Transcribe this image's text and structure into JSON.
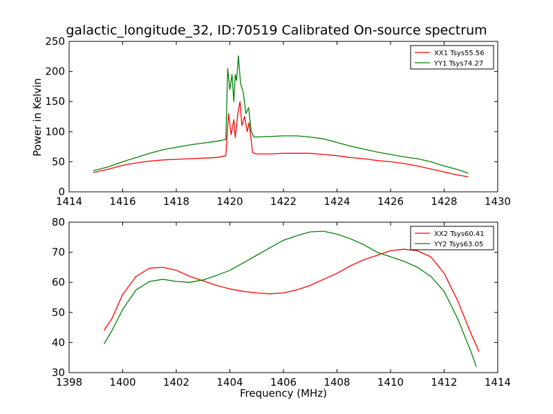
{
  "figure": {
    "title": "galactic_longitude_32, ID:70519 Calibrated On-source spectrum",
    "xlabel": "Frequency (MHz)"
  },
  "chart_data": [
    {
      "type": "line",
      "ylabel": "Power in Kelvin",
      "xlim": [
        1414,
        1430
      ],
      "ylim": [
        0,
        250
      ],
      "xticks": [
        1414,
        1416,
        1418,
        1420,
        1422,
        1424,
        1426,
        1428,
        1430
      ],
      "yticks": [
        0,
        50,
        100,
        150,
        200,
        250
      ],
      "grid": false,
      "legend_position": "top-right",
      "series": [
        {
          "name": "XX1 Tsys55.56",
          "color": "#ff0000",
          "points": [
            [
              1414.9,
              32
            ],
            [
              1415.5,
              38
            ],
            [
              1416,
              44
            ],
            [
              1416.5,
              48
            ],
            [
              1417,
              51
            ],
            [
              1417.5,
              53
            ],
            [
              1418,
              54
            ],
            [
              1418.5,
              55
            ],
            [
              1419,
              56
            ],
            [
              1419.5,
              57
            ],
            [
              1419.85,
              60
            ],
            [
              1419.95,
              130
            ],
            [
              1420.05,
              95
            ],
            [
              1420.15,
              120
            ],
            [
              1420.2,
              90
            ],
            [
              1420.3,
              130
            ],
            [
              1420.38,
              150
            ],
            [
              1420.45,
              110
            ],
            [
              1420.55,
              125
            ],
            [
              1420.65,
              100
            ],
            [
              1420.72,
              115
            ],
            [
              1420.85,
              65
            ],
            [
              1421,
              63
            ],
            [
              1421.5,
              63
            ],
            [
              1422,
              64
            ],
            [
              1422.5,
              64
            ],
            [
              1423,
              64
            ],
            [
              1423.5,
              62
            ],
            [
              1424,
              60
            ],
            [
              1424.5,
              57
            ],
            [
              1425,
              55
            ],
            [
              1425.5,
              52
            ],
            [
              1426,
              50
            ],
            [
              1426.5,
              47
            ],
            [
              1427,
              43
            ],
            [
              1427.5,
              38
            ],
            [
              1428,
              33
            ],
            [
              1428.5,
              28
            ],
            [
              1428.9,
              25
            ]
          ]
        },
        {
          "name": "YY1 Tsys74.27",
          "color": "#008000",
          "points": [
            [
              1414.9,
              35
            ],
            [
              1415.5,
              42
            ],
            [
              1416,
              50
            ],
            [
              1416.5,
              57
            ],
            [
              1417,
              64
            ],
            [
              1417.5,
              70
            ],
            [
              1418,
              74
            ],
            [
              1418.5,
              78
            ],
            [
              1419,
              81
            ],
            [
              1419.5,
              84
            ],
            [
              1419.85,
              87
            ],
            [
              1419.92,
              205
            ],
            [
              1420.0,
              170
            ],
            [
              1420.08,
              195
            ],
            [
              1420.15,
              150
            ],
            [
              1420.2,
              195
            ],
            [
              1420.25,
              185
            ],
            [
              1420.32,
              226
            ],
            [
              1420.4,
              180
            ],
            [
              1420.5,
              165
            ],
            [
              1420.6,
              130
            ],
            [
              1420.7,
              140
            ],
            [
              1420.8,
              100
            ],
            [
              1420.9,
              91
            ],
            [
              1421.5,
              92
            ],
            [
              1422,
              93
            ],
            [
              1422.5,
              93
            ],
            [
              1423,
              91
            ],
            [
              1423.5,
              88
            ],
            [
              1424,
              82
            ],
            [
              1424.5,
              76
            ],
            [
              1425,
              71
            ],
            [
              1425.5,
              66
            ],
            [
              1426,
              62
            ],
            [
              1426.5,
              58
            ],
            [
              1427,
              55
            ],
            [
              1427.5,
              50
            ],
            [
              1428,
              43
            ],
            [
              1428.5,
              37
            ],
            [
              1428.9,
              31
            ]
          ]
        }
      ]
    },
    {
      "type": "line",
      "ylabel": "",
      "xlim": [
        1398,
        1414
      ],
      "ylim": [
        30,
        80
      ],
      "xticks": [
        1398,
        1400,
        1402,
        1404,
        1406,
        1408,
        1410,
        1412,
        1414
      ],
      "yticks": [
        30,
        40,
        50,
        60,
        70,
        80
      ],
      "grid": false,
      "legend_position": "top-right",
      "series": [
        {
          "name": "XX2 Tsys60.41",
          "color": "#ff0000",
          "points": [
            [
              1399.3,
              44
            ],
            [
              1399.6,
              48
            ],
            [
              1400,
              56
            ],
            [
              1400.5,
              62
            ],
            [
              1401,
              64.7
            ],
            [
              1401.5,
              65
            ],
            [
              1402,
              64
            ],
            [
              1402.5,
              62
            ],
            [
              1403,
              60.5
            ],
            [
              1403.5,
              59
            ],
            [
              1404,
              57.8
            ],
            [
              1404.5,
              57
            ],
            [
              1405,
              56.5
            ],
            [
              1405.5,
              56.2
            ],
            [
              1406,
              56.5
            ],
            [
              1406.5,
              57.5
            ],
            [
              1407,
              59
            ],
            [
              1407.5,
              61
            ],
            [
              1408,
              63
            ],
            [
              1408.5,
              65.5
            ],
            [
              1409,
              67.5
            ],
            [
              1409.5,
              69
            ],
            [
              1410,
              70.5
            ],
            [
              1410.5,
              71
            ],
            [
              1411,
              70.5
            ],
            [
              1411.5,
              68.5
            ],
            [
              1412,
              63
            ],
            [
              1412.5,
              54
            ],
            [
              1413,
              43
            ],
            [
              1413.3,
              37
            ]
          ]
        },
        {
          "name": "YY2 Tsys63.05",
          "color": "#008000",
          "points": [
            [
              1399.3,
              39.5
            ],
            [
              1399.6,
              44
            ],
            [
              1400,
              51
            ],
            [
              1400.5,
              57.5
            ],
            [
              1401,
              60.3
            ],
            [
              1401.5,
              61
            ],
            [
              1402,
              60.3
            ],
            [
              1402.5,
              60
            ],
            [
              1403,
              60.8
            ],
            [
              1403.5,
              62.3
            ],
            [
              1404,
              64
            ],
            [
              1404.5,
              66.5
            ],
            [
              1405,
              69
            ],
            [
              1405.5,
              71.5
            ],
            [
              1406,
              74
            ],
            [
              1406.5,
              75.5
            ],
            [
              1407,
              76.8
            ],
            [
              1407.5,
              77
            ],
            [
              1408,
              76
            ],
            [
              1408.5,
              74.5
            ],
            [
              1409,
              72.5
            ],
            [
              1409.5,
              70
            ],
            [
              1410,
              68.5
            ],
            [
              1410.5,
              67
            ],
            [
              1411,
              65
            ],
            [
              1411.5,
              62
            ],
            [
              1412,
              57
            ],
            [
              1412.5,
              48
            ],
            [
              1413,
              37
            ],
            [
              1413.2,
              32
            ]
          ]
        }
      ]
    }
  ]
}
